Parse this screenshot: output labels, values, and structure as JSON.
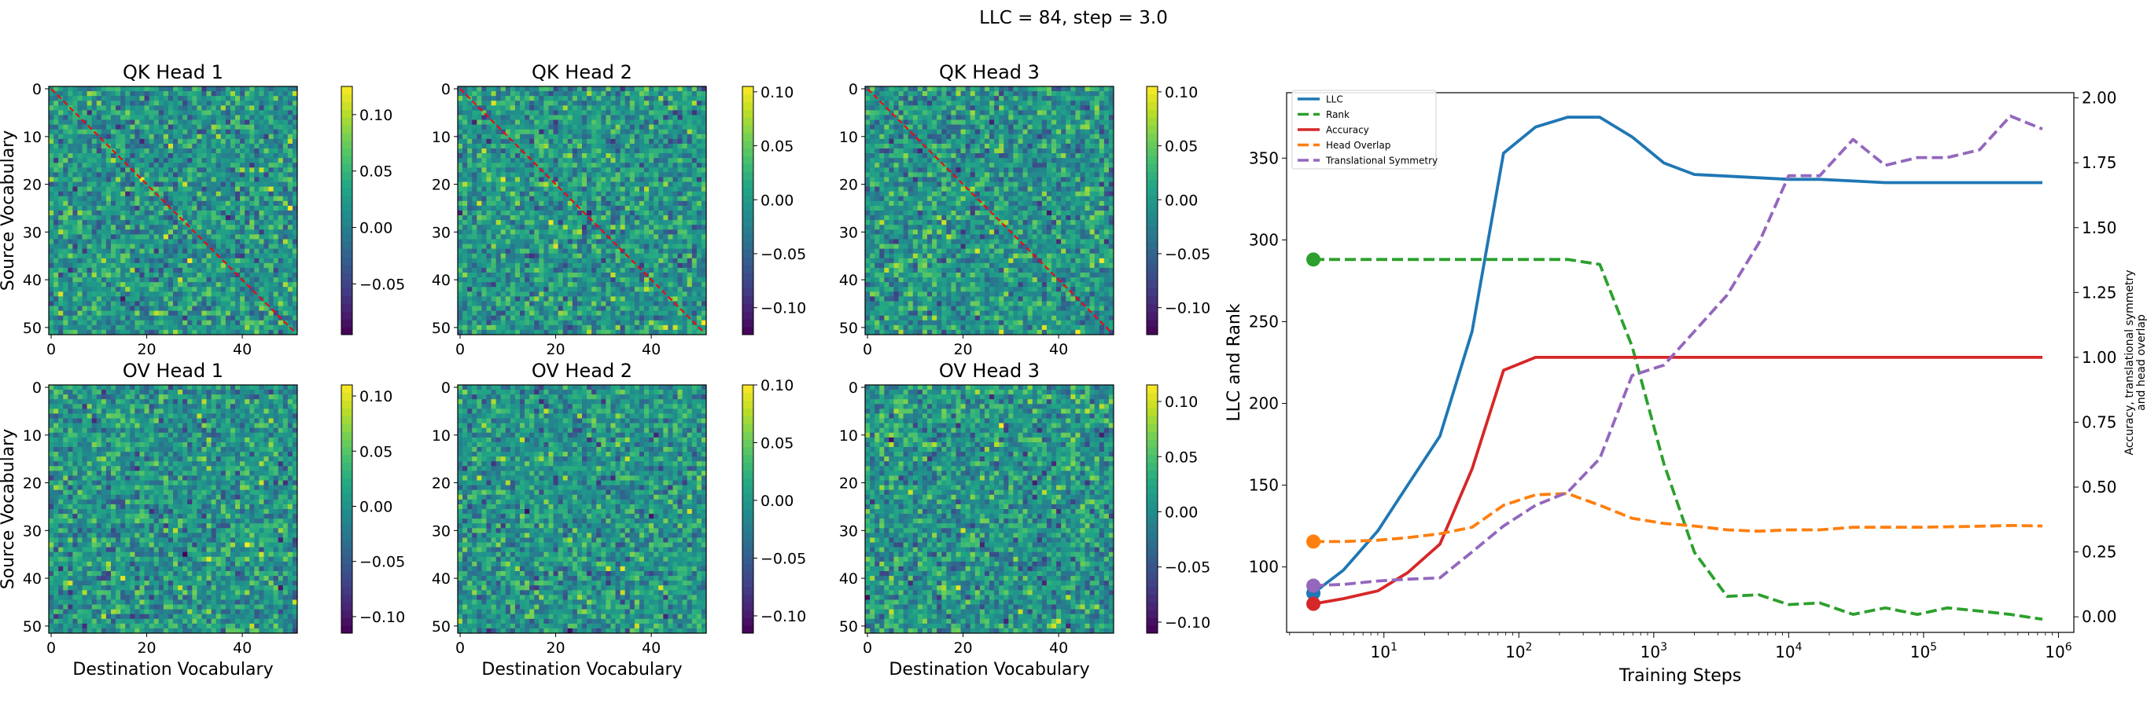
{
  "figure": {
    "suptitle": "LLC = 84, step = 3.0"
  },
  "colors": {
    "llc": "#1f77b4",
    "rank": "#2ca02c",
    "accuracy": "#d62728",
    "head_overlap": "#ff7f0e",
    "translational_symmetry": "#9467bd",
    "diagonal": "#ff0000"
  },
  "chart_data": [
    {
      "type": "heatmap",
      "title": "QK Head 1",
      "ylabel": "Source Vocabulary",
      "xlabel": "",
      "size": 52,
      "xticks": [
        0,
        20,
        40
      ],
      "yticks": [
        0,
        10,
        20,
        30,
        40,
        50
      ],
      "colormap": "viridis",
      "vmin": -0.095,
      "vmax": 0.125,
      "colorbar_ticks": [
        0.1,
        0.05,
        0.0,
        -0.05
      ],
      "colorbar_labels": [
        "0.10",
        "0.05",
        "0.00",
        "−0.05"
      ],
      "diagonal_line": true,
      "seed": 11
    },
    {
      "type": "heatmap",
      "title": "QK Head 2",
      "ylabel": "",
      "xlabel": "",
      "size": 52,
      "xticks": [
        0,
        20,
        40
      ],
      "yticks": [
        0,
        10,
        20,
        30,
        40,
        50
      ],
      "colormap": "viridis",
      "vmin": -0.125,
      "vmax": 0.105,
      "colorbar_ticks": [
        0.1,
        0.05,
        0.0,
        -0.05,
        -0.1
      ],
      "colorbar_labels": [
        "0.10",
        "0.05",
        "0.00",
        "−0.05",
        "−0.10"
      ],
      "diagonal_line": true,
      "seed": 23
    },
    {
      "type": "heatmap",
      "title": "QK Head 3",
      "ylabel": "",
      "xlabel": "",
      "size": 52,
      "xticks": [
        0,
        20,
        40
      ],
      "yticks": [
        0,
        10,
        20,
        30,
        40,
        50
      ],
      "colormap": "viridis",
      "vmin": -0.125,
      "vmax": 0.105,
      "colorbar_ticks": [
        0.1,
        0.05,
        0.0,
        -0.05,
        -0.1
      ],
      "colorbar_labels": [
        "0.10",
        "0.05",
        "0.00",
        "−0.05",
        "−0.10"
      ],
      "diagonal_line": true,
      "seed": 37
    },
    {
      "type": "heatmap",
      "title": "OV Head 1",
      "ylabel": "Source Vocabulary",
      "xlabel": "Destination Vocabulary",
      "size": 52,
      "xticks": [
        0,
        20,
        40
      ],
      "yticks": [
        0,
        10,
        20,
        30,
        40,
        50
      ],
      "colormap": "viridis",
      "vmin": -0.115,
      "vmax": 0.11,
      "colorbar_ticks": [
        0.1,
        0.05,
        0.0,
        -0.05,
        -0.1
      ],
      "colorbar_labels": [
        "0.10",
        "0.05",
        "0.00",
        "−0.05",
        "−0.10"
      ],
      "diagonal_line": false,
      "seed": 41
    },
    {
      "type": "heatmap",
      "title": "OV Head 2",
      "ylabel": "",
      "xlabel": "Destination Vocabulary",
      "size": 52,
      "xticks": [
        0,
        20,
        40
      ],
      "yticks": [
        0,
        10,
        20,
        30,
        40,
        50
      ],
      "colormap": "viridis",
      "vmin": -0.115,
      "vmax": 0.1,
      "colorbar_ticks": [
        0.1,
        0.05,
        0.0,
        -0.05,
        -0.1
      ],
      "colorbar_labels": [
        "0.10",
        "0.05",
        "0.00",
        "−0.05",
        "−0.10"
      ],
      "diagonal_line": false,
      "seed": 53
    },
    {
      "type": "heatmap",
      "title": "OV Head 3",
      "ylabel": "",
      "xlabel": "Destination Vocabulary",
      "size": 52,
      "xticks": [
        0,
        20,
        40
      ],
      "yticks": [
        0,
        10,
        20,
        30,
        40,
        50
      ],
      "colormap": "viridis",
      "vmin": -0.11,
      "vmax": 0.115,
      "colorbar_ticks": [
        0.1,
        0.05,
        0.0,
        -0.05,
        -0.1
      ],
      "colorbar_labels": [
        "0.10",
        "0.05",
        "0.00",
        "−0.05",
        "−0.10"
      ],
      "diagonal_line": false,
      "seed": 67
    },
    {
      "type": "line",
      "title": "",
      "xlabel": "Training Steps",
      "ylabel": "LLC and Rank",
      "y2label_lines": [
        "Accuracy, translational symmetry",
        "and head overlap"
      ],
      "xscale": "log",
      "xlim": [
        1.9,
        1300000
      ],
      "ylim": [
        60,
        390
      ],
      "y2lim": [
        -0.06,
        2.02
      ],
      "xticks": [
        10,
        100,
        1000,
        10000,
        100000,
        1000000
      ],
      "xtick_labels": [
        {
          "base": "10",
          "exp": "1"
        },
        {
          "base": "10",
          "exp": "2"
        },
        {
          "base": "10",
          "exp": "3"
        },
        {
          "base": "10",
          "exp": "4"
        },
        {
          "base": "10",
          "exp": "5"
        },
        {
          "base": "10",
          "exp": "6"
        }
      ],
      "yticks": [
        100,
        150,
        200,
        250,
        300,
        350
      ],
      "yticks_labels": [
        "100",
        "150",
        "200",
        "250",
        "300",
        "350"
      ],
      "y2ticks": [
        0.0,
        0.25,
        0.5,
        0.75,
        1.0,
        1.25,
        1.5,
        1.75,
        2.0
      ],
      "y2ticks_labels": [
        "0.00",
        "0.25",
        "0.50",
        "0.75",
        "1.00",
        "1.25",
        "1.50",
        "1.75",
        "2.00"
      ],
      "legend_position": "top-left",
      "current_step": 3,
      "x": [
        3,
        5,
        9,
        15,
        26,
        45,
        77,
        133,
        230,
        398,
        690,
        1190,
        2000,
        3500,
        6000,
        10000,
        17000,
        30000,
        52000,
        90000,
        150000,
        260000,
        440000,
        760000
      ],
      "series": [
        {
          "name": "LLC",
          "axis": "left",
          "style": "solid",
          "color_key": "llc",
          "values": [
            84,
            98,
            122,
            150,
            180,
            244,
            353,
            369,
            375,
            375,
            363,
            347,
            340,
            339,
            338,
            337,
            337,
            336,
            335,
            335,
            335,
            335,
            335,
            335
          ]
        },
        {
          "name": "Rank",
          "axis": "left",
          "style": "dashed",
          "color_key": "rank",
          "values": [
            288,
            288,
            288,
            288,
            288,
            288,
            288,
            288,
            288,
            285,
            235,
            163,
            109,
            82,
            83,
            77,
            78,
            71,
            75,
            71,
            75,
            73,
            71,
            68
          ]
        },
        {
          "name": "Accuracy",
          "axis": "right",
          "style": "solid",
          "color_key": "accuracy",
          "values": [
            0.05,
            0.07,
            0.1,
            0.17,
            0.28,
            0.57,
            0.95,
            1.0,
            1.0,
            1.0,
            1.0,
            1.0,
            1.0,
            1.0,
            1.0,
            1.0,
            1.0,
            1.0,
            1.0,
            1.0,
            1.0,
            1.0,
            1.0,
            1.0
          ]
        },
        {
          "name": "Head Overlap",
          "axis": "right",
          "style": "dashed",
          "color_key": "head_overlap",
          "values": [
            0.29,
            0.29,
            0.295,
            0.305,
            0.32,
            0.345,
            0.43,
            0.47,
            0.475,
            0.43,
            0.38,
            0.36,
            0.35,
            0.335,
            0.33,
            0.335,
            0.335,
            0.345,
            0.345,
            0.345,
            0.347,
            0.349,
            0.352,
            0.35
          ]
        },
        {
          "name": "Translational Symmetry",
          "axis": "right",
          "style": "dashed",
          "color_key": "translational_symmetry",
          "values": [
            0.12,
            0.125,
            0.138,
            0.145,
            0.15,
            0.25,
            0.35,
            0.43,
            0.48,
            0.61,
            0.93,
            0.97,
            1.1,
            1.24,
            1.44,
            1.7,
            1.7,
            1.84,
            1.74,
            1.77,
            1.77,
            1.8,
            1.93,
            1.88
          ]
        }
      ]
    }
  ]
}
